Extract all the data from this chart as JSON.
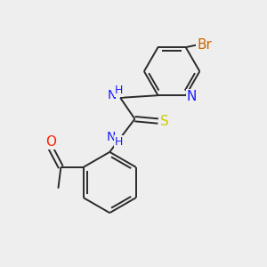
{
  "background_color": "#eeeeee",
  "atom_colors": {
    "C": "#000000",
    "N": "#1a1aff",
    "O": "#ff2200",
    "S": "#cccc00",
    "Br": "#cc6600",
    "H": "#1a1aff"
  },
  "font_size": 10,
  "bond_color": "#2a2a2a",
  "bond_width": 1.4,
  "figsize": [
    3.0,
    3.0
  ],
  "dpi": 100
}
